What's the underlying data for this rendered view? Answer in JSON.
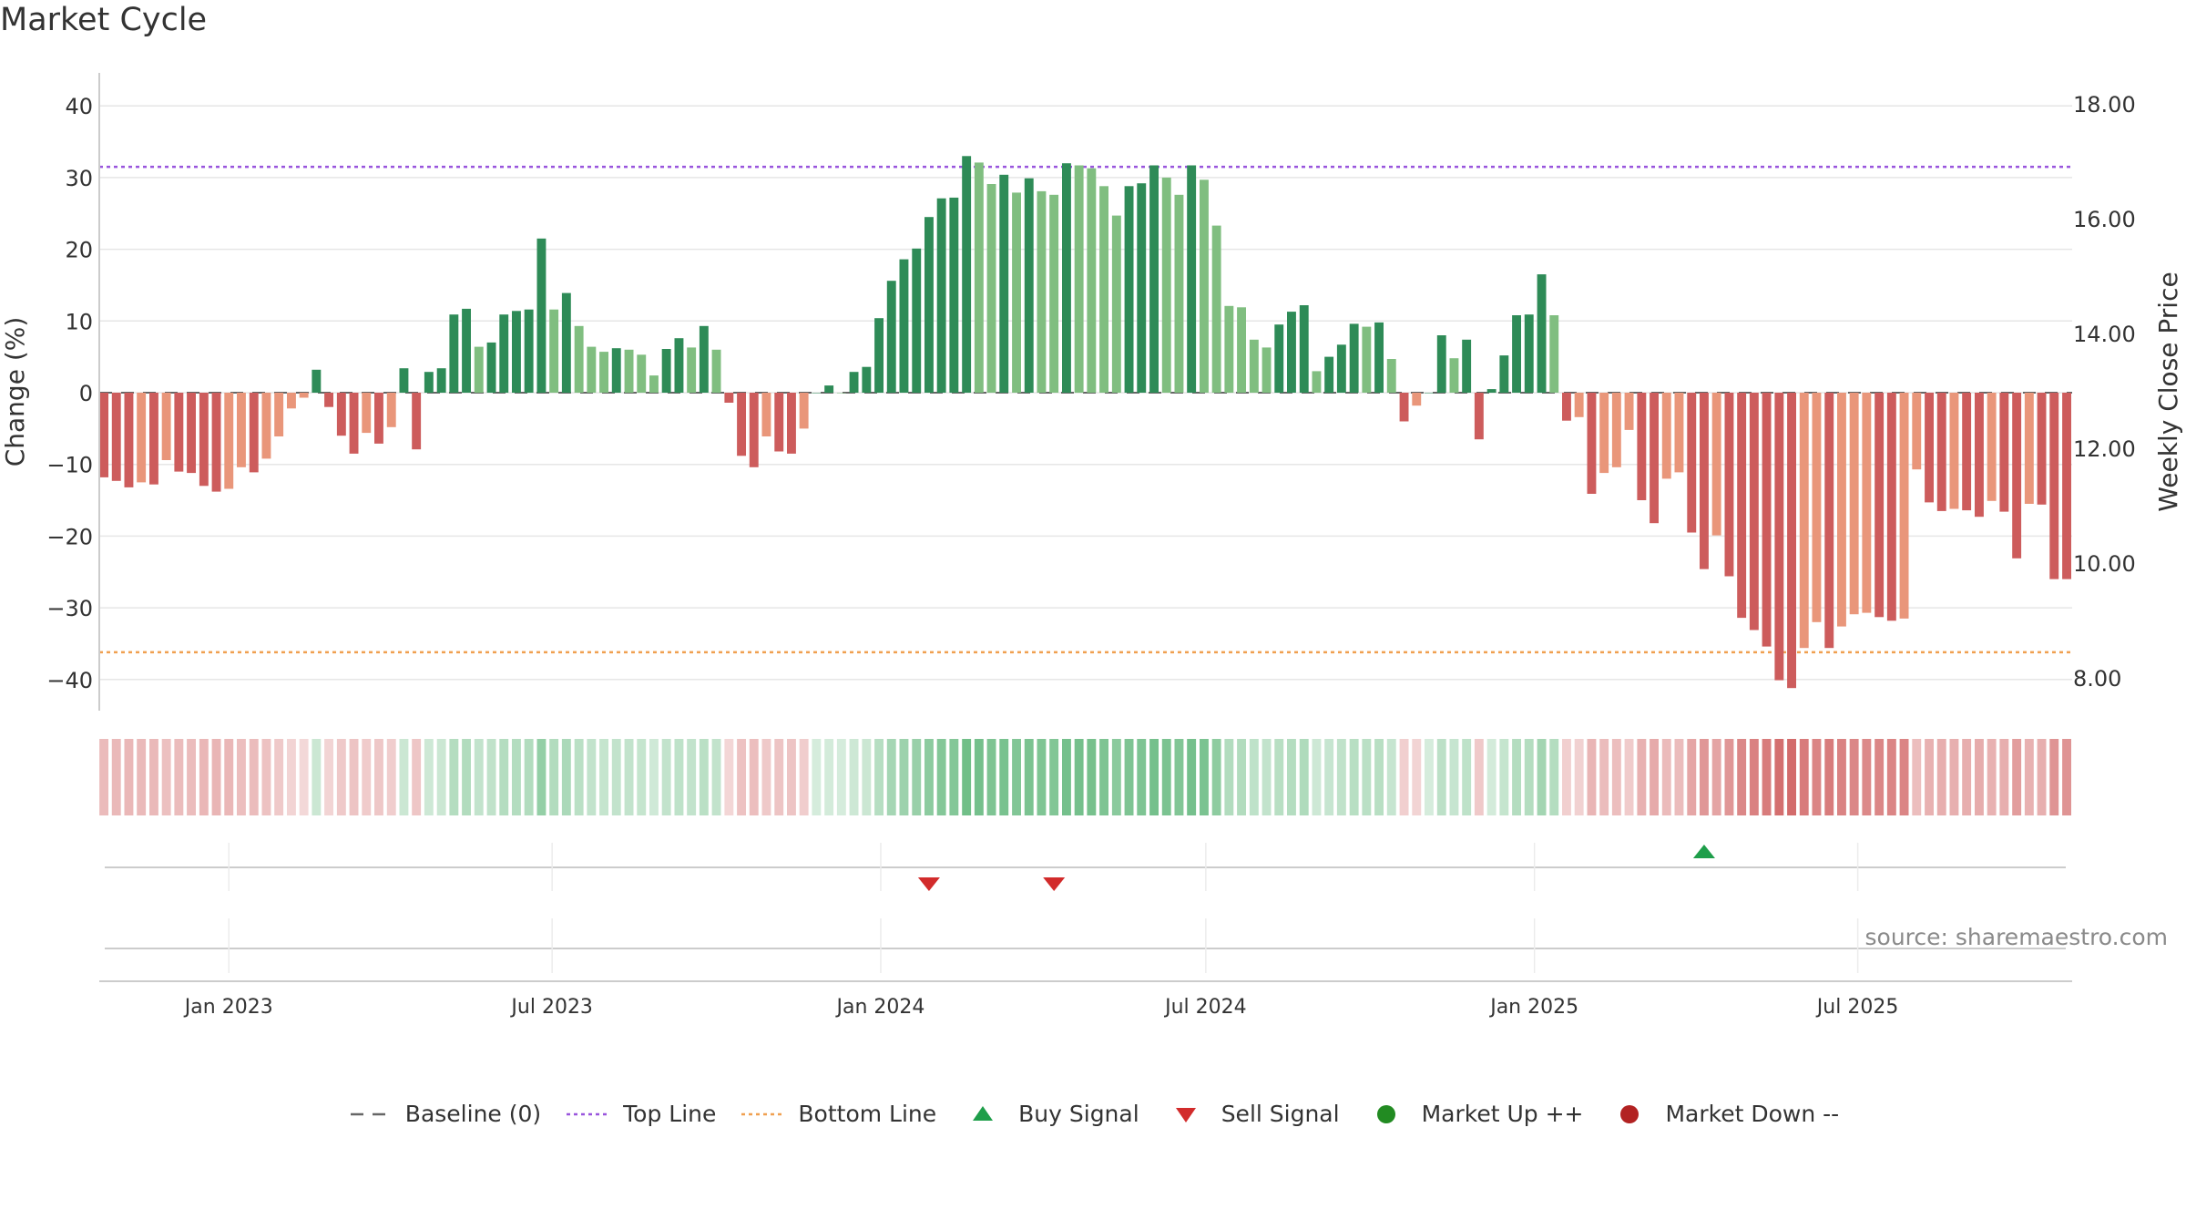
{
  "title": "Market Cycle",
  "source": "source: sharemaestro.com",
  "colors": {
    "green_dark": "#2e8b57",
    "green_light": "#80be80",
    "red_dark": "#cd5c5c",
    "red_light": "#e9967a",
    "top_line": "#9955dd",
    "bottom_line": "#f0a050",
    "buy": "#1e9e4a",
    "sell": "#d22b2b",
    "market_up": "#228b22",
    "market_down": "#b22222"
  },
  "legend": [
    {
      "key": "baseline",
      "label": "Baseline (0)"
    },
    {
      "key": "top",
      "label": "Top Line"
    },
    {
      "key": "bottom",
      "label": "Bottom Line"
    },
    {
      "key": "buy",
      "label": "Buy Signal"
    },
    {
      "key": "sell",
      "label": "Sell Signal"
    },
    {
      "key": "up",
      "label": "Market Up ++"
    },
    {
      "key": "down",
      "label": "Market Down --"
    }
  ],
  "chart_data": {
    "type": "bar",
    "title": "Market Cycle",
    "ylabel": "Change (%)",
    "y2label": "Weekly Close Price",
    "ylim": [
      -44,
      44
    ],
    "yticks": [
      40,
      30,
      20,
      10,
      0,
      -10,
      -20,
      -30,
      -40
    ],
    "ytick_labels": [
      "40",
      "30",
      "20",
      "10",
      "0",
      "−10",
      "−20",
      "−30",
      "−40"
    ],
    "y2ticks": [
      18.0,
      16.0,
      14.0,
      12.0,
      10.0,
      8.0
    ],
    "y2tick_labels": [
      "18.00",
      "16.00",
      "14.00",
      "12.00",
      "10.00",
      "8.00"
    ],
    "top_line": 31.5,
    "bottom_line": -36.2,
    "xticks": [
      {
        "date": "2023-01-01",
        "label": "Jan 2023"
      },
      {
        "date": "2023-07-01",
        "label": "Jul 2023"
      },
      {
        "date": "2024-01-01",
        "label": "Jan 2024"
      },
      {
        "date": "2024-07-01",
        "label": "Jul 2024"
      },
      {
        "date": "2025-01-01",
        "label": "Jan 2025"
      },
      {
        "date": "2025-07-01",
        "label": "Jul 2025"
      }
    ],
    "x_start": "2022-10-23",
    "x_step_days": 7,
    "values": [
      -11.8,
      -12.3,
      -13.2,
      -12.5,
      -12.8,
      -9.4,
      -11.0,
      -11.2,
      -13.0,
      -13.8,
      -13.4,
      -10.4,
      -11.1,
      -9.2,
      -6.1,
      -2.2,
      -0.7,
      3.2,
      -2.0,
      -6.0,
      -8.5,
      -5.6,
      -7.1,
      -4.8,
      3.4,
      -7.9,
      2.9,
      3.4,
      10.9,
      11.7,
      6.4,
      7.0,
      10.9,
      11.4,
      11.6,
      21.5,
      11.6,
      13.9,
      9.3,
      6.4,
      5.7,
      6.2,
      6.0,
      5.3,
      2.4,
      6.1,
      7.6,
      6.3,
      9.3,
      6.0,
      -1.4,
      -8.8,
      -10.4,
      -6.1,
      -8.2,
      -8.5,
      -5.0,
      0,
      1.0,
      0,
      2.9,
      3.6,
      10.4,
      15.6,
      18.6,
      20.1,
      24.5,
      27.1,
      27.2,
      33.0,
      32.1,
      29.1,
      30.4,
      27.9,
      29.9,
      28.1,
      27.6,
      32.0,
      31.7,
      31.3,
      28.8,
      24.7,
      28.8,
      29.2,
      31.7,
      30.0,
      27.6,
      31.7,
      29.7,
      23.3,
      12.1,
      11.9,
      7.4,
      6.3,
      9.5,
      11.3,
      12.2,
      3.0,
      5.0,
      6.7,
      9.6,
      9.2,
      9.8,
      4.7,
      -4.0,
      -1.8,
      0,
      8.0,
      4.8,
      7.4,
      -6.5,
      0.5,
      5.2,
      10.8,
      10.9,
      16.5,
      10.8,
      -3.9,
      -3.4,
      -14.1,
      -11.2,
      -10.4,
      -5.2,
      -15.0,
      -18.2,
      -12.0,
      -11.1,
      -19.5,
      -24.6,
      -19.9,
      -25.6,
      -31.4,
      -33.1,
      -35.4,
      -40.1,
      -41.2,
      -35.6,
      -32.0,
      -35.6,
      -32.6,
      -30.9,
      -30.7,
      -31.3,
      -31.8,
      -31.5,
      -10.7,
      -15.3,
      -16.5,
      -16.2,
      -16.4,
      -17.3,
      -15.1,
      -16.6,
      -23.1,
      -15.5,
      -15.6,
      -26.0,
      -26.0
    ],
    "heat_strip": "background band under the bars colored by market state",
    "signals": [
      {
        "type": "sell",
        "date": "2024-01-28"
      },
      {
        "type": "sell",
        "date": "2024-04-07"
      },
      {
        "type": "buy",
        "date": "2025-04-06"
      }
    ]
  }
}
